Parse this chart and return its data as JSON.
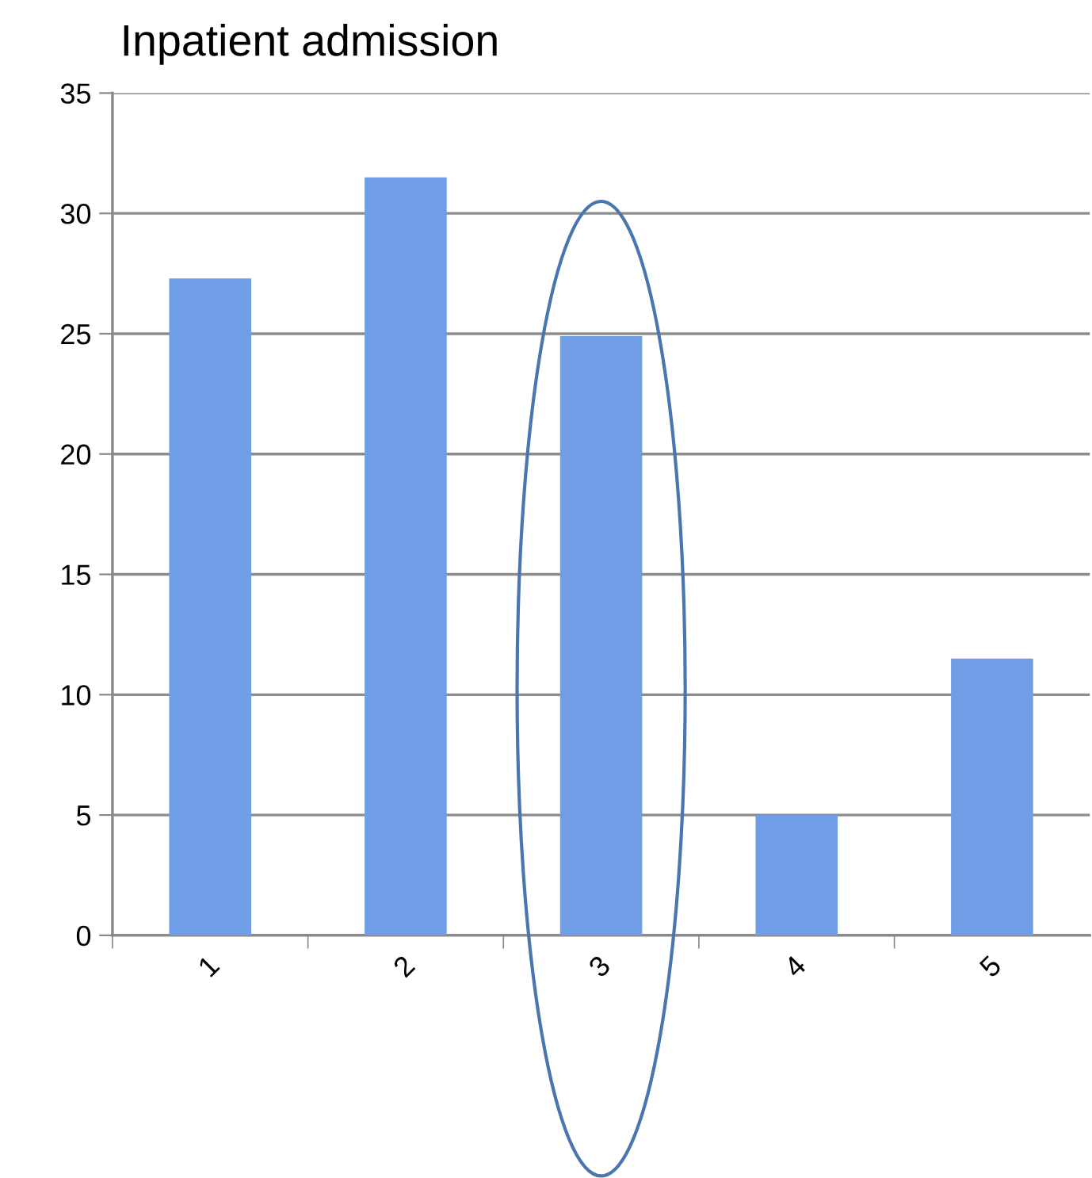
{
  "chart_data": {
    "type": "bar",
    "title": "Inpatient admission",
    "categories": [
      "1",
      "2",
      "3",
      "4",
      "5"
    ],
    "values": [
      27.3,
      31.5,
      24.9,
      5.0,
      11.5
    ],
    "color": "#6f9ee6",
    "ylim": [
      0,
      35
    ],
    "yticks": [
      0,
      5,
      10,
      15,
      20,
      25,
      30,
      35
    ],
    "grid": "y",
    "legend": false
  }
}
